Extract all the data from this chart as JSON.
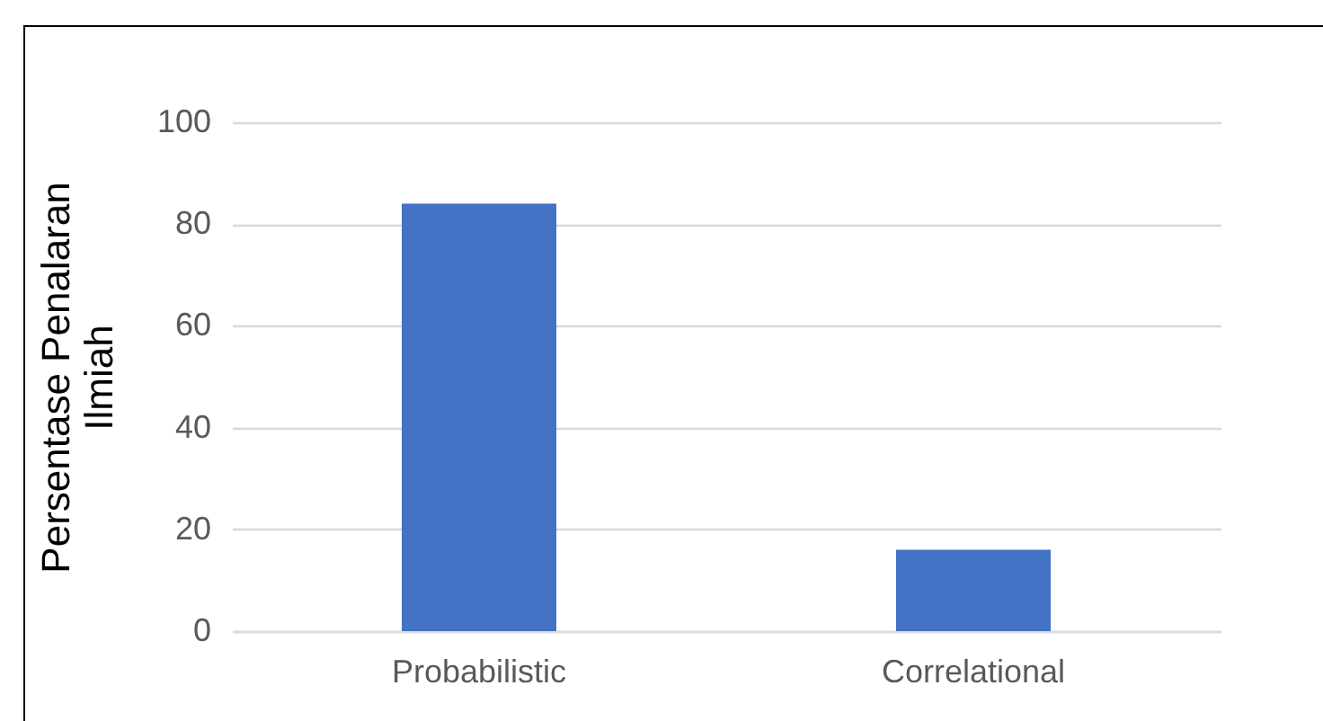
{
  "chart_data": {
    "type": "bar",
    "ylabel": "Persentase Penalaran Ilmiah",
    "categories": [
      "Probabilistic",
      "Correlational"
    ],
    "values": [
      84,
      16
    ],
    "color": "#4472c4",
    "ylim": [
      0,
      100
    ],
    "yticks": [
      0,
      20,
      40,
      60,
      80,
      100
    ],
    "grid": "y"
  }
}
